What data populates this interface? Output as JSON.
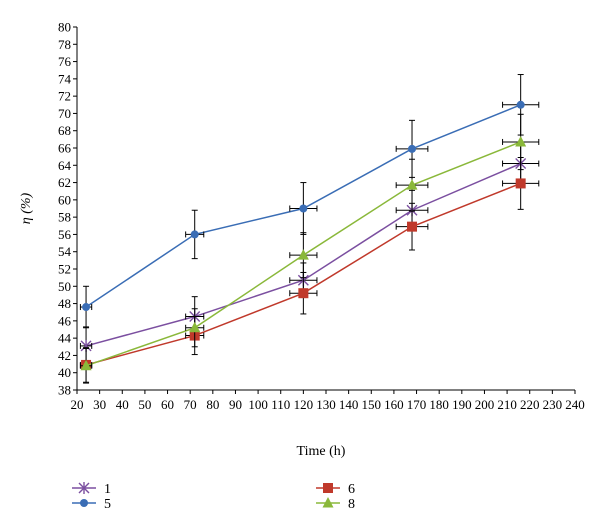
{
  "chart_data": {
    "type": "line",
    "xlabel": "Time (h)",
    "ylabel": "η (%)",
    "xlim": [
      20,
      240
    ],
    "ylim": [
      38,
      80
    ],
    "xticks": [
      20,
      30,
      40,
      50,
      60,
      70,
      80,
      90,
      100,
      110,
      120,
      130,
      140,
      150,
      160,
      170,
      180,
      190,
      200,
      210,
      220,
      230,
      240
    ],
    "yticks": [
      38,
      40,
      42,
      44,
      46,
      48,
      50,
      52,
      54,
      56,
      58,
      60,
      62,
      64,
      66,
      68,
      70,
      72,
      74,
      76,
      78,
      80
    ],
    "grid": false,
    "legend_position": "bottom",
    "series": [
      {
        "name": "1",
        "color": "#7b4fa0",
        "marker": "star",
        "x": [
          24,
          72,
          120,
          168,
          216
        ],
        "y": [
          43.1,
          46.5,
          50.7,
          58.8,
          64.2
        ],
        "yerr": [
          2.2,
          2.3,
          2.0,
          2.3,
          2.5
        ],
        "xerr": [
          2.5,
          4,
          6,
          7,
          8
        ]
      },
      {
        "name": "5",
        "color": "#3a6db5",
        "marker": "diamond",
        "x": [
          24,
          72,
          120,
          168,
          216
        ],
        "y": [
          47.6,
          56.0,
          59.0,
          65.9,
          71.0
        ],
        "yerr": [
          2.4,
          2.8,
          3.0,
          3.3,
          3.5
        ],
        "xerr": [
          2.5,
          4,
          6,
          7,
          8
        ]
      },
      {
        "name": "6",
        "color": "#c0392b",
        "marker": "square",
        "x": [
          24,
          72,
          120,
          168,
          216
        ],
        "y": [
          40.9,
          44.3,
          49.2,
          56.9,
          61.9
        ],
        "yerr": [
          2.0,
          2.2,
          2.4,
          2.7,
          3.0
        ],
        "xerr": [
          2.5,
          4,
          6,
          7,
          8
        ]
      },
      {
        "name": "8",
        "color": "#8ab83a",
        "marker": "triangle",
        "x": [
          24,
          72,
          120,
          168,
          216
        ],
        "y": [
          40.8,
          45.2,
          53.6,
          61.7,
          66.7
        ],
        "yerr": [
          2.0,
          2.2,
          2.6,
          3.0,
          3.2
        ],
        "xerr": [
          2.5,
          4,
          6,
          7,
          8
        ]
      }
    ]
  }
}
